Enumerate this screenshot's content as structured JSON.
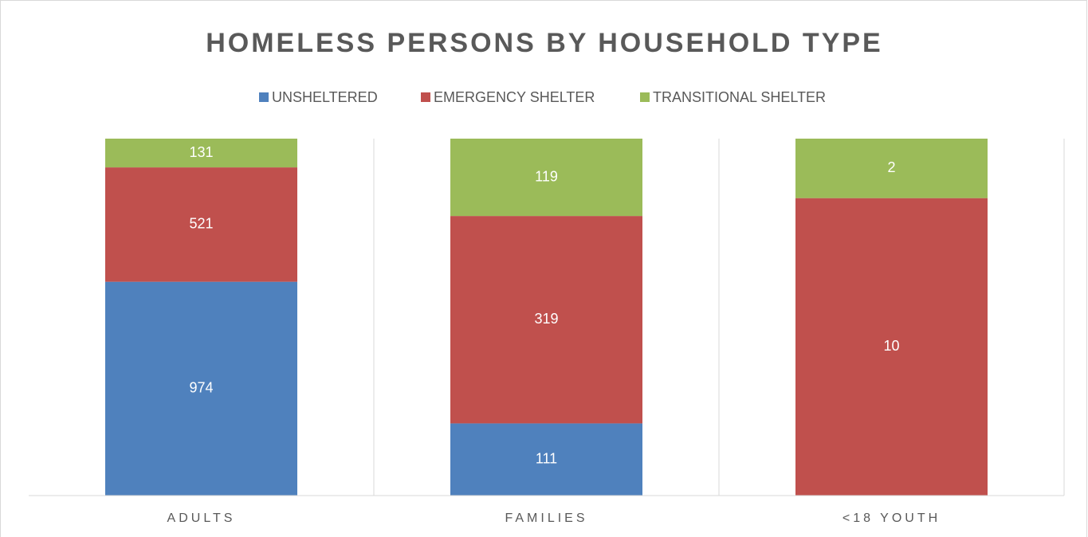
{
  "chart_data": {
    "type": "stacked_percent_bar",
    "title": "HOMELESS PERSONS BY HOUSEHOLD TYPE",
    "categories": [
      "ADULTS",
      "FAMILIES",
      "<18 YOUTH"
    ],
    "series": [
      {
        "name": "UNSHELTERED",
        "color": "#4f81bd",
        "values": [
          974,
          111,
          0
        ]
      },
      {
        "name": "EMERGENCY SHELTER",
        "color": "#c0504d",
        "values": [
          521,
          319,
          10
        ]
      },
      {
        "name": "TRANSITIONAL SHELTER",
        "color": "#9bbb59",
        "values": [
          131,
          119,
          2
        ]
      }
    ],
    "grid": true
  }
}
